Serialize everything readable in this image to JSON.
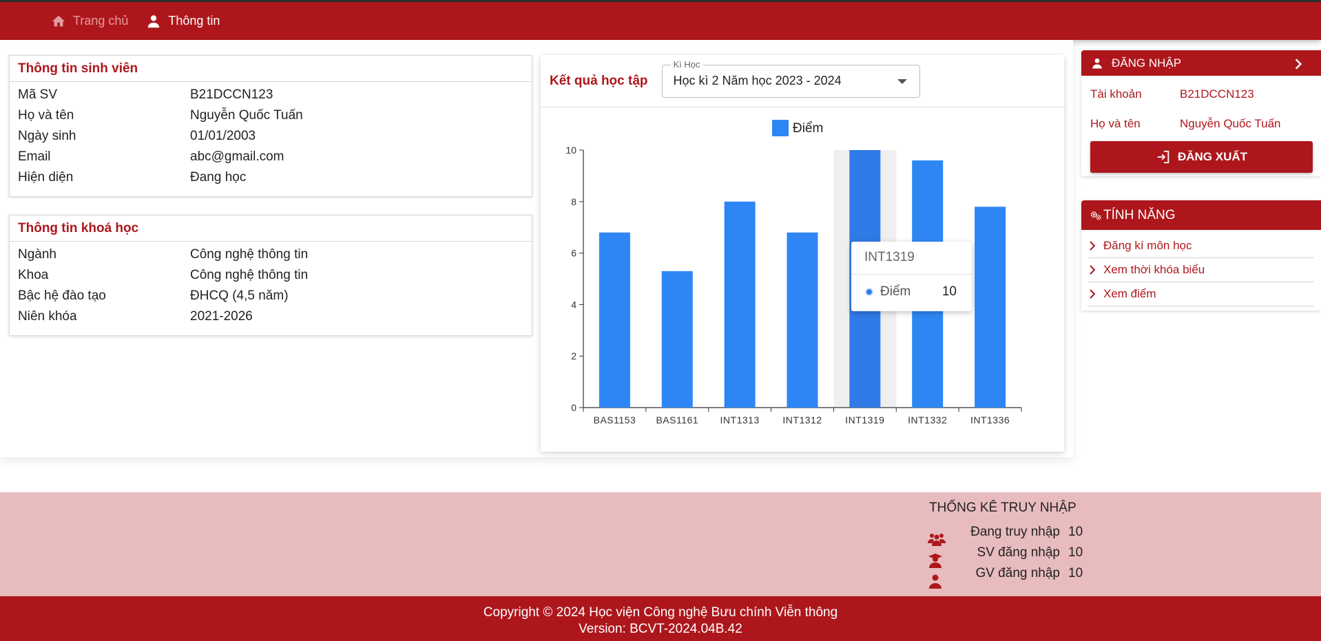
{
  "nav": {
    "home_label": "Trang chủ",
    "info_label": "Thông tin"
  },
  "student": {
    "title": "Thông tin sinh viên",
    "rows": [
      {
        "k": "Mã SV",
        "v": "B21DCCN123"
      },
      {
        "k": "Họ và tên",
        "v": "Nguyễn Quốc Tuấn"
      },
      {
        "k": "Ngày sinh",
        "v": "01/01/2003"
      },
      {
        "k": "Email",
        "v": "abc@gmail.com"
      },
      {
        "k": "Hiện diện",
        "v": "Đang học"
      }
    ]
  },
  "course": {
    "title": "Thông tin khoá học",
    "rows": [
      {
        "k": "Ngành",
        "v": "Công nghệ thông tin"
      },
      {
        "k": "Khoa",
        "v": "Công nghệ thông tin"
      },
      {
        "k": "Bậc hệ đào tạo",
        "v": "ĐHCQ (4,5 năm)"
      },
      {
        "k": "Niên khóa",
        "v": "2021-2026"
      }
    ]
  },
  "results": {
    "title": "Kết quả học tập",
    "select_label": "Kì Học",
    "select_value": "Học kì 2 Năm học 2023 - 2024"
  },
  "chart_data": {
    "type": "bar",
    "categories": [
      "BAS1153",
      "BAS1161",
      "INT1313",
      "INT1312",
      "INT1319",
      "INT1332",
      "INT1336"
    ],
    "series": [
      {
        "name": "Điểm",
        "values": [
          6.8,
          5.3,
          8.0,
          6.8,
          10.0,
          9.6,
          7.8
        ],
        "color": "#2e86f5"
      }
    ],
    "ylim": [
      0,
      10
    ],
    "yticks": [
      0,
      2,
      4,
      6,
      8,
      10
    ],
    "legend": "top-center",
    "highlight_color": "#2f7ae6",
    "hover_band_color": "#efefef"
  },
  "tooltip": {
    "title": "INT1319",
    "label": "Điểm",
    "value": "10"
  },
  "login": {
    "title": "ĐĂNG NHẬP",
    "account_label": "Tài khoản",
    "account_value": "B21DCCN123",
    "name_label": "Họ và tên",
    "name_value": "Nguyễn Quốc Tuấn",
    "logout_label": "ĐĂNG XUẤT"
  },
  "features": {
    "title": "TÍNH NĂNG",
    "items": [
      "Đăng kí môn học",
      "Xem thời khóa biểu",
      "Xem điểm"
    ]
  },
  "stats": {
    "title": "THỐNG KÊ TRUY NHẬP",
    "rows": [
      {
        "label": "Đang truy nhập",
        "value": "10",
        "icon": "users-icon"
      },
      {
        "label": "SV đăng nhập",
        "value": "10",
        "icon": "student-icon"
      },
      {
        "label": "GV đăng nhập",
        "value": "10",
        "icon": "teacher-icon"
      }
    ]
  },
  "footer": {
    "copyright": "Copyright © 2024 Học viện Công nghệ Bưu chính Viễn thông",
    "version": "Version: BCVT-2024.04B.42"
  },
  "colors": {
    "brand": "#ad171c",
    "band": "#e8bcbe",
    "bar": "#2e86f5"
  }
}
